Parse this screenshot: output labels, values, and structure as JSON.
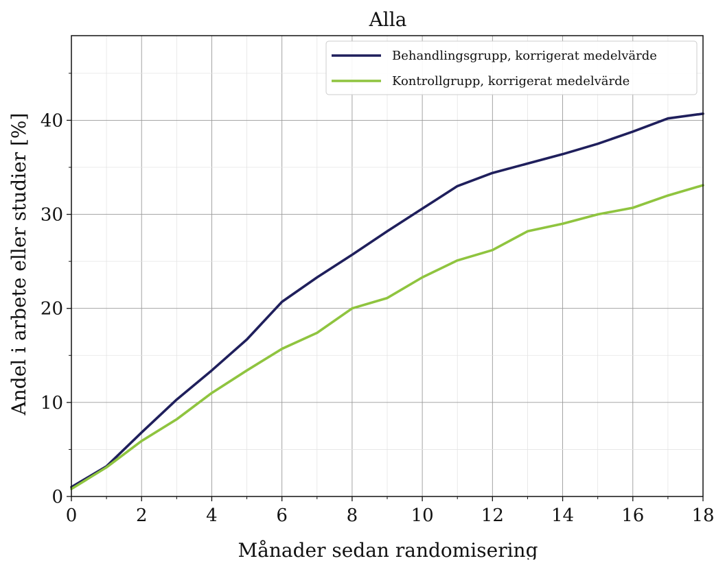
{
  "chart_data": {
    "type": "line",
    "title": "Alla",
    "xlabel": "Månader sedan randomisering",
    "ylabel": "Andel i arbete eller studier [%]",
    "xlim": [
      0,
      18
    ],
    "ylim": [
      0,
      49
    ],
    "x_ticks": [
      "0",
      "2",
      "4",
      "6",
      "8",
      "10",
      "12",
      "14",
      "16",
      "18"
    ],
    "y_ticks": [
      "0",
      "10",
      "20",
      "30",
      "40"
    ],
    "grid": true,
    "legend_position": "top-right",
    "x": [
      0,
      1,
      2,
      3,
      4,
      5,
      6,
      7,
      8,
      9,
      10,
      11,
      12,
      13,
      14,
      15,
      16,
      17,
      18
    ],
    "series": [
      {
        "name": "Behandlingsgrupp, korrigerat medelvärde",
        "color": "#1f1f5c",
        "values": [
          1.0,
          3.2,
          6.8,
          10.3,
          13.4,
          16.7,
          20.7,
          23.3,
          25.7,
          28.2,
          30.6,
          33.0,
          34.4,
          35.4,
          36.4,
          37.5,
          38.8,
          40.2,
          40.7
        ]
      },
      {
        "name": "Kontrollgrupp, korrigerat medelvärde",
        "color": "#8fc43f",
        "values": [
          0.8,
          3.1,
          5.9,
          8.2,
          11.0,
          13.4,
          15.7,
          17.4,
          20.0,
          21.1,
          23.3,
          25.1,
          26.2,
          28.2,
          29.0,
          30.0,
          30.7,
          32.0,
          33.1
        ]
      }
    ]
  }
}
